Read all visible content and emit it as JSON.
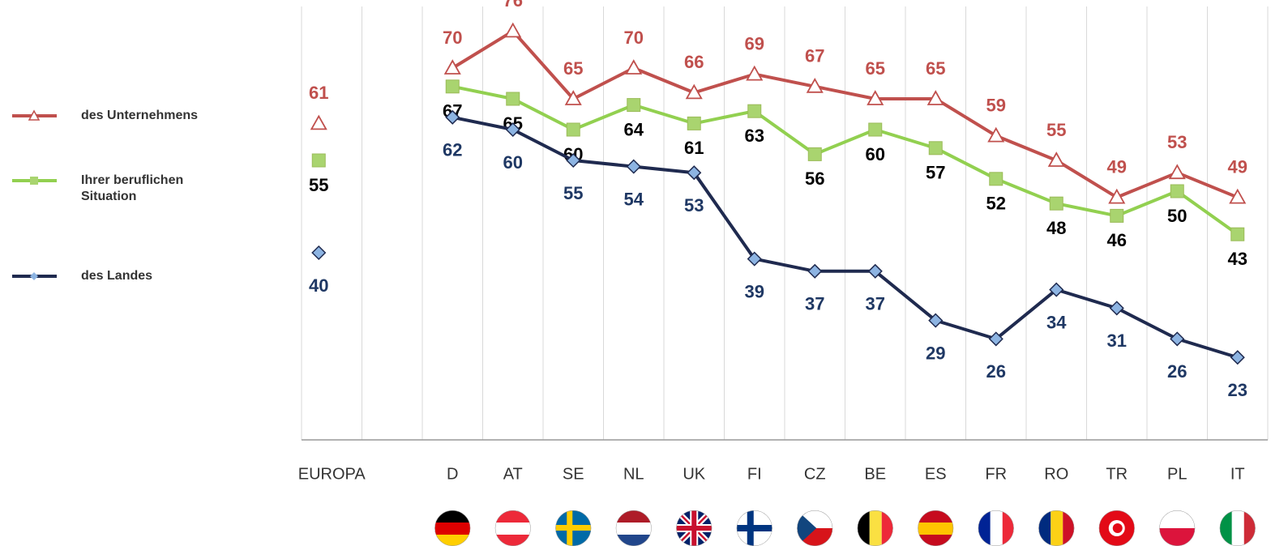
{
  "chart_data": {
    "type": "line",
    "categories": [
      "EUROPA",
      null,
      "D",
      "AT",
      "SE",
      "NL",
      "UK",
      "FI",
      "CZ",
      "BE",
      "ES",
      "FR",
      "RO",
      "TR",
      "PL",
      "IT"
    ],
    "ylim": [
      10,
      80
    ],
    "series": [
      {
        "name": "des Unternehmens",
        "color": "#c0504d",
        "marker": "triangle",
        "label_color": "#c0504d",
        "values": [
          61,
          null,
          70,
          76,
          65,
          70,
          66,
          69,
          67,
          65,
          65,
          59,
          55,
          49,
          53,
          49
        ]
      },
      {
        "name": "Ihrer beruflichen Situation",
        "color": "#92d050",
        "marker": "square",
        "label_color": "#000000",
        "values": [
          55,
          null,
          67,
          65,
          60,
          64,
          61,
          63,
          56,
          60,
          57,
          52,
          48,
          46,
          50,
          43
        ]
      },
      {
        "name": "des Landes",
        "color": "#1f2a4f",
        "marker": "diamond",
        "label_color": "#1f3864",
        "values": [
          40,
          null,
          62,
          60,
          55,
          54,
          53,
          39,
          37,
          37,
          29,
          26,
          34,
          31,
          26,
          23
        ]
      }
    ]
  }
}
